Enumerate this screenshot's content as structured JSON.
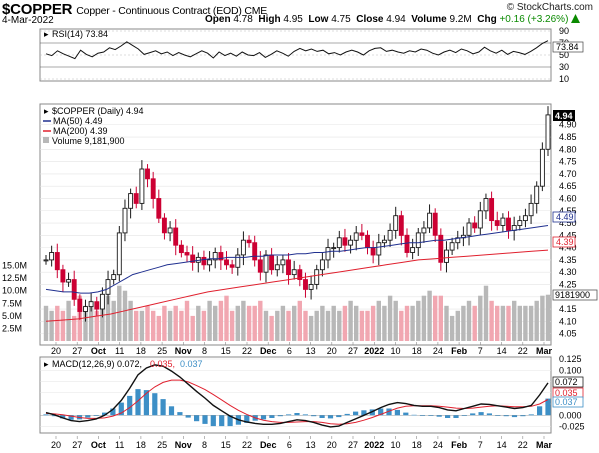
{
  "header": {
    "symbol": "$COPPER",
    "name": "Copper - Continuous Contract (EOD)",
    "exchange": "CME",
    "date": "4-Mar-2022",
    "brand": "© StockCharts.com",
    "open_label": "Open",
    "open": "4.78",
    "high_label": "High",
    "high": "4.95",
    "low_label": "Low",
    "low": "4.75",
    "close_label": "Close",
    "close": "4.94",
    "volume_label": "Volume",
    "volume": "9.2M",
    "chg_label": "Chg",
    "chg": "+0.16 (+3.26%)",
    "chg_icon": "up-arrow-icon"
  },
  "rsi": {
    "legend": "RSI(14) 73.84",
    "ticks": [
      "90",
      "70",
      "50",
      "30",
      "10"
    ],
    "last_label": "73.84"
  },
  "price": {
    "legend_main": "$COPPER (Daily) 4.94",
    "legend_ma50": "MA(50) 4.49",
    "legend_ma200": "MA(200) 4.39",
    "legend_vol": "Volume 9,181,900",
    "ticks": [
      "4.90",
      "4.85",
      "4.80",
      "4.75",
      "4.70",
      "4.65",
      "4.60",
      "4.55",
      "4.50",
      "4.45",
      "4.40",
      "4.35",
      "4.30",
      "4.25",
      "4.20",
      "4.15",
      "4.10",
      "4.05"
    ],
    "vol_ticks": [
      "15.0M",
      "12.5M",
      "10.0M",
      "7.5M",
      "5.0M",
      "2.5M"
    ],
    "label_close": "4.94",
    "label_ma50": "4.49",
    "label_ma200": "4.39",
    "label_volume": "9181900"
  },
  "macd": {
    "legend_main": "MACD(12,26,9) 0.072,",
    "legend_signal": "0.035,",
    "legend_hist": "0.037",
    "ticks": [
      "0.125",
      "0.100",
      "0.075",
      "0.050",
      "0.025",
      "0.000",
      "-0.025"
    ],
    "label_macd": "0.072",
    "label_signal": "0.035",
    "label_hist": "0.037"
  },
  "xaxis": {
    "labels": [
      "20",
      "27",
      "Oct",
      "11",
      "18",
      "25",
      "Nov",
      "8",
      "15",
      "22",
      "Dec",
      "6",
      "13",
      "20",
      "27",
      "2022",
      "10",
      "18",
      "24",
      "Feb",
      "7",
      "14",
      "22",
      "Mar"
    ]
  },
  "colors": {
    "up": "#1a1a1a",
    "down": "#cc0033",
    "ma50": "#1f2f8f",
    "ma200": "#e0202e",
    "vol_up": "#b8b8b8",
    "vol_down": "#f1a7b1",
    "macd_hist": "#3d8fc6",
    "chg": "#0a8a00"
  },
  "chart_data": [
    {
      "type": "line",
      "title": "RSI(14)",
      "ylim": [
        10,
        90
      ],
      "ticks": [
        90,
        70,
        50,
        30,
        10
      ],
      "last": 73.84,
      "values": [
        52,
        49,
        57,
        52,
        48,
        44,
        58,
        51,
        47,
        53,
        55,
        62,
        59,
        65,
        72,
        66,
        60,
        51,
        54,
        57,
        52,
        55,
        49,
        54,
        50,
        47,
        52,
        57,
        53,
        45,
        55,
        49,
        53,
        48,
        55,
        50,
        49,
        54,
        46,
        51,
        57,
        53,
        48,
        56,
        61,
        57,
        60,
        56,
        58,
        52,
        54,
        50,
        55,
        58,
        55,
        50,
        57,
        61,
        62,
        56,
        58,
        55,
        53,
        57,
        55,
        60,
        58,
        53,
        50,
        55,
        58,
        54,
        60,
        57,
        52,
        55,
        63,
        57,
        53,
        58,
        51,
        56,
        54,
        51,
        56,
        62,
        69,
        73.84
      ]
    },
    {
      "type": "line",
      "title": "$COPPER (Daily) 4.94",
      "ylim": [
        4.02,
        4.96
      ],
      "series": [
        {
          "name": "$COPPER",
          "values": [
            4.35,
            4.38,
            4.31,
            4.26,
            4.27,
            4.19,
            4.14,
            4.16,
            4.18,
            4.15,
            4.21,
            4.27,
            4.29,
            4.46,
            4.56,
            4.62,
            4.58,
            4.72,
            4.68,
            4.6,
            4.52,
            4.46,
            4.48,
            4.41,
            4.38,
            4.37,
            4.34,
            4.36,
            4.33,
            4.35,
            4.38,
            4.35,
            4.33,
            4.32,
            4.37,
            4.43,
            4.42,
            4.35,
            4.3,
            4.37,
            4.31,
            4.33,
            4.35,
            4.29,
            4.31,
            4.27,
            4.23,
            4.25,
            4.31,
            4.35,
            4.4,
            4.4,
            4.44,
            4.41,
            4.43,
            4.46,
            4.45,
            4.4,
            4.37,
            4.42,
            4.43,
            4.47,
            4.53,
            4.45,
            4.38,
            4.4,
            4.46,
            4.48,
            4.54,
            4.45,
            4.34,
            4.39,
            4.42,
            4.44,
            4.45,
            4.5,
            4.48,
            4.55,
            4.6,
            4.51,
            4.49,
            4.52,
            4.47,
            4.49,
            4.51,
            4.53,
            4.58,
            4.65,
            4.8,
            4.94
          ]
        },
        {
          "name": "MA(50)",
          "values": [
            4.23,
            4.225,
            4.22,
            4.22,
            4.215,
            4.215,
            4.22,
            4.23,
            4.25,
            4.27,
            4.29,
            4.3,
            4.31,
            4.32,
            4.33,
            4.335,
            4.34,
            4.345,
            4.35,
            4.355,
            4.355,
            4.36,
            4.36,
            4.36,
            4.365,
            4.365,
            4.37,
            4.37,
            4.37,
            4.375,
            4.375,
            4.38,
            4.38,
            4.385,
            4.385,
            4.39,
            4.395,
            4.4,
            4.4,
            4.405,
            4.41,
            4.415,
            4.42,
            4.42,
            4.425,
            4.43,
            4.43,
            4.435,
            4.44,
            4.445,
            4.45,
            4.455,
            4.46,
            4.465,
            4.47,
            4.475,
            4.48,
            4.485,
            4.49
          ]
        },
        {
          "name": "MA(200)",
          "values": [
            4.1,
            4.105,
            4.11,
            4.12,
            4.13,
            4.145,
            4.16,
            4.175,
            4.19,
            4.205,
            4.22,
            4.23,
            4.24,
            4.25,
            4.26,
            4.27,
            4.28,
            4.29,
            4.3,
            4.31,
            4.32,
            4.33,
            4.34,
            4.35,
            4.355,
            4.36,
            4.365,
            4.37,
            4.375,
            4.38,
            4.385,
            4.39
          ]
        }
      ]
    },
    {
      "type": "bar",
      "title": "Volume",
      "ylim": [
        0,
        17.5
      ],
      "ticks": [
        "15.0M",
        "12.5M",
        "10.0M",
        "7.5M",
        "5.0M",
        "2.5M"
      ],
      "values": [
        7,
        6,
        7,
        6,
        8,
        5,
        9,
        7,
        8,
        6,
        8,
        9,
        8,
        11,
        10,
        8,
        6,
        6,
        7,
        6,
        5,
        7,
        6,
        7,
        6,
        8,
        5,
        7,
        6,
        8,
        7,
        8,
        9,
        6,
        7,
        8,
        7,
        7,
        8,
        6,
        5,
        6,
        7,
        6,
        7,
        8,
        6,
        5,
        6,
        7,
        6,
        7,
        6,
        7,
        8,
        7,
        6,
        6,
        7,
        8,
        7,
        9,
        8,
        6,
        7,
        7,
        8,
        9,
        10,
        9,
        9,
        7,
        5,
        6,
        7,
        8,
        7,
        9,
        11,
        8,
        7,
        7,
        7,
        8,
        7,
        7,
        7,
        8,
        9,
        9.2
      ]
    },
    {
      "type": "line",
      "title": "MACD(12,26,9)",
      "ylim": [
        -0.035,
        0.125
      ],
      "ticks": [
        0.125,
        0.1,
        0.075,
        0.05,
        0.025,
        0.0,
        -0.025
      ],
      "series": [
        {
          "name": "MACD",
          "values": [
            0.006,
            0.001,
            -0.006,
            -0.012,
            -0.014,
            -0.012,
            -0.008,
            0.0,
            0.013,
            0.033,
            0.06,
            0.09,
            0.105,
            0.112,
            0.109,
            0.098,
            0.085,
            0.069,
            0.053,
            0.038,
            0.022,
            0.01,
            -0.002,
            -0.01,
            -0.015,
            -0.018,
            -0.02,
            -0.02,
            -0.018,
            -0.014,
            -0.01,
            -0.012,
            -0.016,
            -0.022,
            -0.026,
            -0.024,
            -0.016,
            -0.008,
            0.0,
            0.008,
            0.017,
            0.024,
            0.028,
            0.026,
            0.022,
            0.02,
            0.02,
            0.017,
            0.012,
            0.01,
            0.015,
            0.02,
            0.025,
            0.024,
            0.021,
            0.018,
            0.015,
            0.017,
            0.022,
            0.045,
            0.072
          ]
        },
        {
          "name": "Signal",
          "values": [
            0.004,
            0.003,
            0.001,
            -0.002,
            -0.005,
            -0.007,
            -0.007,
            -0.006,
            -0.002,
            0.005,
            0.017,
            0.032,
            0.049,
            0.063,
            0.073,
            0.078,
            0.078,
            0.074,
            0.066,
            0.057,
            0.046,
            0.034,
            0.022,
            0.011,
            0.002,
            -0.006,
            -0.011,
            -0.014,
            -0.016,
            -0.016,
            -0.015,
            -0.014,
            -0.014,
            -0.016,
            -0.019,
            -0.02,
            -0.019,
            -0.016,
            -0.011,
            -0.005,
            0.002,
            0.009,
            0.016,
            0.02,
            0.021,
            0.021,
            0.021,
            0.02,
            0.018,
            0.016,
            0.015,
            0.016,
            0.018,
            0.02,
            0.021,
            0.02,
            0.019,
            0.019,
            0.02,
            0.025,
            0.035
          ]
        }
      ]
    }
  ]
}
